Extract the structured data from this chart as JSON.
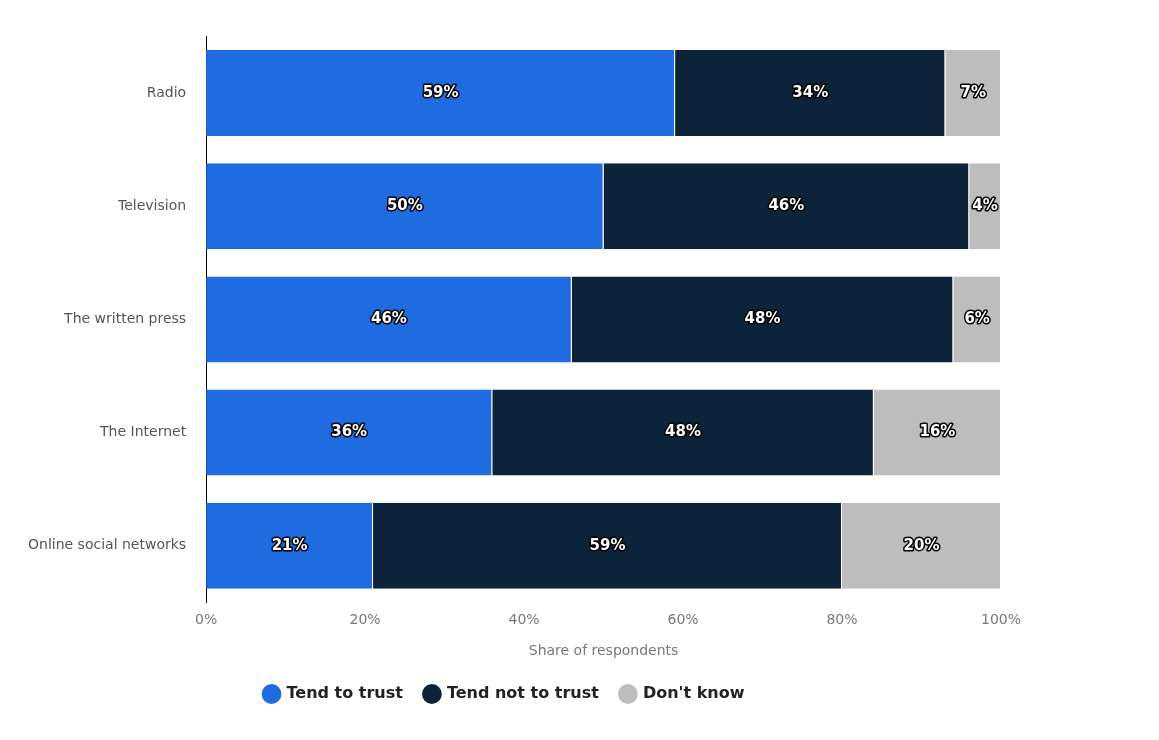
{
  "chart_data": {
    "type": "bar",
    "orientation": "horizontal",
    "stacked": true,
    "xlabel": "Share of respondents",
    "categories": [
      "Radio",
      "Television",
      "The written press",
      "The Internet",
      "Online social networks"
    ],
    "series": [
      {
        "name": "Tend to trust",
        "color": "#1f6be0",
        "values": [
          59,
          50,
          46,
          36,
          21
        ]
      },
      {
        "name": "Tend not to trust",
        "color": "#0d2339",
        "values": [
          34,
          46,
          48,
          48,
          59
        ]
      },
      {
        "name": "Don't know",
        "color": "#bdbdbd",
        "values": [
          7,
          4,
          6,
          16,
          20
        ]
      }
    ],
    "value_labels": [
      [
        "59%",
        "50%",
        "46%",
        "36%",
        "21%"
      ],
      [
        "34%",
        "46%",
        "48%",
        "48%",
        "59%"
      ],
      [
        "7%",
        "4%",
        "6%",
        "16%",
        "20%"
      ]
    ],
    "xlim": [
      0,
      100
    ],
    "xticks": [
      {
        "value": 0,
        "label": "0%"
      },
      {
        "value": 20,
        "label": "20%"
      },
      {
        "value": 40,
        "label": "40%"
      },
      {
        "value": 60,
        "label": "60%"
      },
      {
        "value": 80,
        "label": "80%"
      },
      {
        "value": 100,
        "label": "100%"
      }
    ],
    "grid": false,
    "legend": "bottom"
  }
}
